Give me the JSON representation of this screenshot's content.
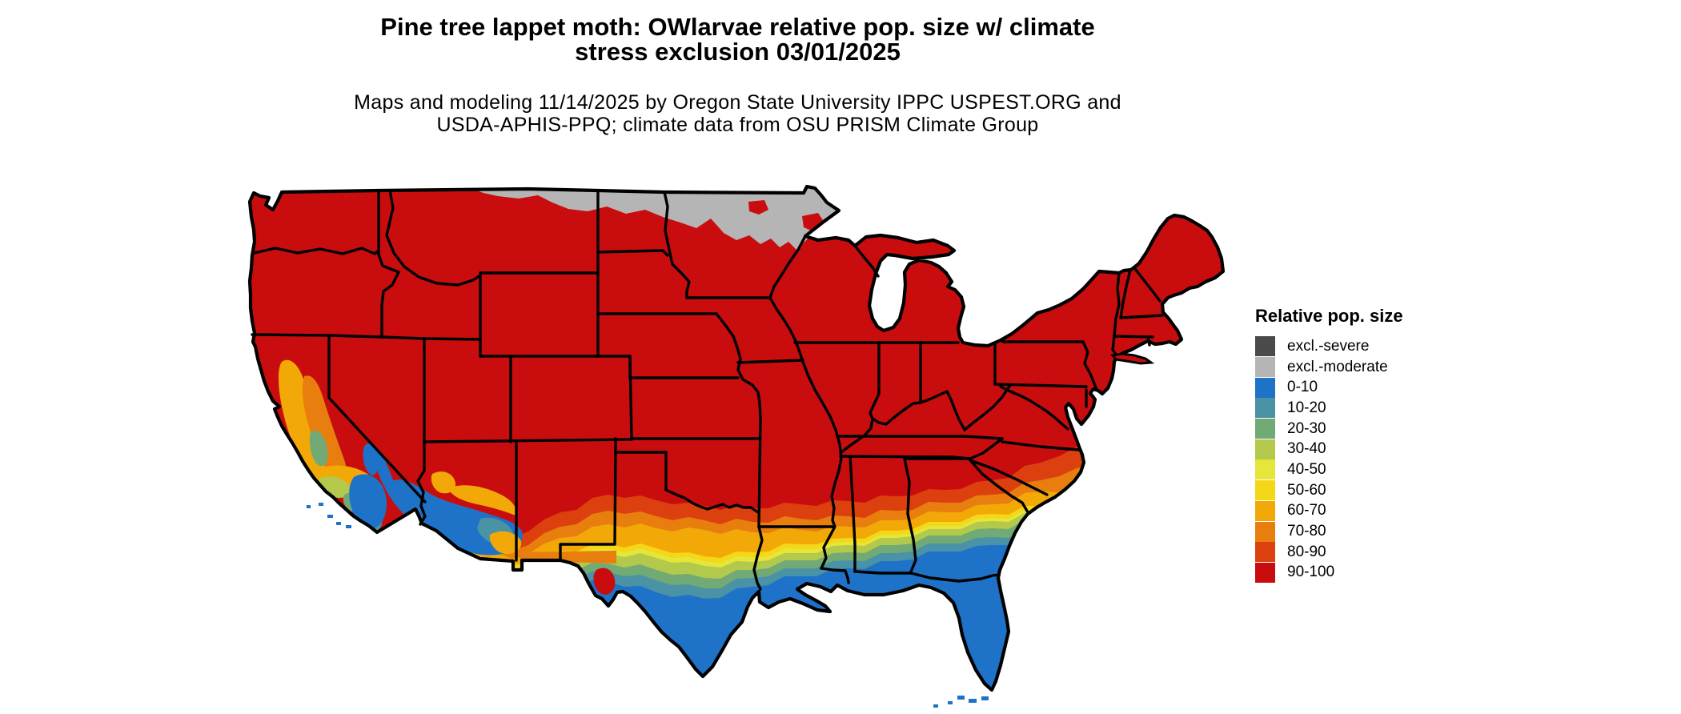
{
  "figure": {
    "title_line1": "Pine tree lappet moth: OWlarvae relative pop. size w/ climate",
    "title_line2": "stress exclusion 03/01/2025",
    "subtitle_line1": "Maps and modeling 11/14/2025 by Oregon State University IPPC USPEST.ORG and",
    "subtitle_line2": "USDA-APHIS-PPQ; climate data from OSU PRISM Climate Group"
  },
  "legend": {
    "title": "Relative pop. size",
    "items": [
      {
        "key": "excl-severe",
        "label": "excl.-severe",
        "color": "#4a4a4a"
      },
      {
        "key": "excl-moderate",
        "label": "excl.-moderate",
        "color": "#b5b5b5"
      },
      {
        "key": "c0",
        "label": "0-10",
        "color": "#1e72c8"
      },
      {
        "key": "c10",
        "label": "10-20",
        "color": "#4a92a6"
      },
      {
        "key": "c20",
        "label": "20-30",
        "color": "#71aa74"
      },
      {
        "key": "c30",
        "label": "30-40",
        "color": "#b3c94c"
      },
      {
        "key": "c40",
        "label": "40-50",
        "color": "#e6e539"
      },
      {
        "key": "c50",
        "label": "50-60",
        "color": "#f4d716"
      },
      {
        "key": "c60",
        "label": "60-70",
        "color": "#f2a908"
      },
      {
        "key": "c70",
        "label": "70-80",
        "color": "#e87e0e"
      },
      {
        "key": "c80",
        "label": "80-90",
        "color": "#dc400e"
      },
      {
        "key": "c90",
        "label": "90-100",
        "color": "#c90d0e"
      }
    ]
  },
  "map": {
    "region": "Continental United States",
    "background": "#ffffff",
    "border_color": "#000000",
    "dominant_class": "90-100",
    "excluded_area_note": "excl.-moderate band along northern Montana / North Dakota / Minnesota border"
  },
  "chart_data": {
    "type": "heatmap",
    "title": "Pine tree lappet moth OWlarvae relative population size map",
    "legend_position": "right",
    "classes": [
      "excl.-severe",
      "excl.-moderate",
      "0-10",
      "10-20",
      "20-30",
      "30-40",
      "40-50",
      "50-60",
      "60-70",
      "70-80",
      "80-90",
      "90-100"
    ],
    "class_colors": [
      "#4a4a4a",
      "#b5b5b5",
      "#1e72c8",
      "#4a92a6",
      "#71aa74",
      "#b3c94c",
      "#e6e539",
      "#f4d716",
      "#f2a908",
      "#e87e0e",
      "#dc400e",
      "#c90d0e"
    ]
  }
}
